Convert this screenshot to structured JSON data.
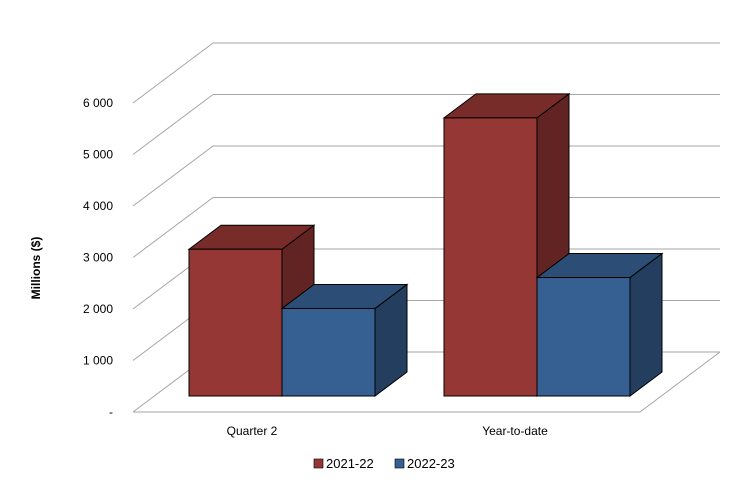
{
  "chart_data": {
    "type": "bar",
    "ylabel": "Millions ($)",
    "xlabel": "",
    "ylim": [
      0,
      6000
    ],
    "yticks": [
      "-",
      "1 000",
      "2 000",
      "3 000",
      "4 000",
      "5 000",
      "6 000"
    ],
    "categories": [
      "Quarter 2",
      "Year-to-date"
    ],
    "series": [
      {
        "name": "2021-22",
        "values": [
          2850,
          5400
        ],
        "color": "#953735"
      },
      {
        "name": "2022-23",
        "values": [
          1700,
          2300
        ],
        "color": "#376092"
      }
    ],
    "grid": true,
    "legend_position": "bottom"
  }
}
